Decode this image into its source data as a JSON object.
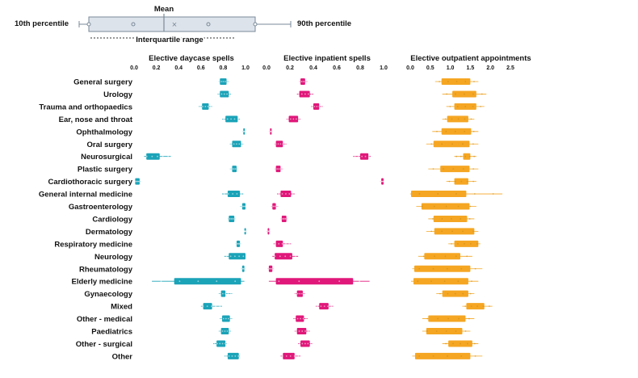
{
  "legend": {
    "mean_label": "Mean",
    "p10_label": "10th percentile",
    "p90_label": "90th percentile",
    "iqr_label": "Interquartile range"
  },
  "chart_data": [
    {
      "type": "boxplot",
      "title": "Elective daycase spells",
      "xlim": [
        0,
        1
      ],
      "ticks": [
        "0.0",
        "0.2",
        "0.4",
        "0.6",
        "0.8",
        "1.0"
      ],
      "color": "#1ba3b8",
      "categories": [
        "General surgery",
        "Urology",
        "Trauma and orthopaedics",
        "Ear, nose and throat",
        "Ophthalmology",
        "Oral surgery",
        "Neurosurgical",
        "Plastic surgery",
        "Cardiothoracic surgery",
        "General internal medicine",
        "Gastroenterology",
        "Cardiology",
        "Dermatology",
        "Respiratory medicine",
        "Neurology",
        "Rheumatology",
        "Elderly medicine",
        "Gynaecology",
        "Mixed",
        "Other - medical",
        "Paediatrics",
        "Other - surgical",
        "Other"
      ],
      "q1": [
        0.77,
        0.77,
        0.61,
        0.82,
        0.98,
        0.88,
        0.11,
        0.88,
        0.01,
        0.84,
        0.97,
        0.85,
        0.99,
        0.92,
        0.85,
        0.97,
        0.36,
        0.78,
        0.62,
        0.79,
        0.78,
        0.74,
        0.84
      ],
      "q3": [
        0.83,
        0.85,
        0.67,
        0.93,
        0.99,
        0.96,
        0.23,
        0.92,
        0.05,
        0.95,
        1.0,
        0.9,
        1.0,
        0.95,
        1.0,
        0.99,
        0.96,
        0.82,
        0.7,
        0.86,
        0.85,
        0.82,
        0.94
      ],
      "p10": [
        0.76,
        0.75,
        0.58,
        0.79,
        0.97,
        0.86,
        0.09,
        0.86,
        0.01,
        0.79,
        0.95,
        0.84,
        0.99,
        0.91,
        0.81,
        0.96,
        0.16,
        0.76,
        0.6,
        0.77,
        0.76,
        0.71,
        0.81
      ],
      "p90": [
        0.85,
        0.87,
        0.7,
        0.95,
        1.0,
        0.98,
        0.33,
        0.93,
        0.06,
        0.98,
        1.0,
        0.91,
        1.0,
        0.96,
        1.0,
        1.0,
        0.99,
        0.88,
        0.79,
        0.88,
        0.87,
        0.83,
        0.95
      ]
    },
    {
      "type": "boxplot",
      "title": "Elective inpatient spells",
      "xlim": [
        0,
        1
      ],
      "ticks": [
        "0.0",
        "0.2",
        "0.4",
        "0.6",
        "0.8",
        "1.0"
      ],
      "color": "#e0187a",
      "categories": [
        "General surgery",
        "Urology",
        "Trauma and orthopaedics",
        "Ear, nose and throat",
        "Ophthalmology",
        "Oral surgery",
        "Neurosurgical",
        "Plastic surgery",
        "Cardiothoracic surgery",
        "General internal medicine",
        "Gastroenterology",
        "Cardiology",
        "Dermatology",
        "Respiratory medicine",
        "Neurology",
        "Rheumatology",
        "Elderly medicine",
        "Gynaecology",
        "Mixed",
        "Other - medical",
        "Paediatrics",
        "Other - surgical",
        "Other"
      ],
      "q1": [
        0.29,
        0.28,
        0.4,
        0.19,
        0.03,
        0.08,
        0.8,
        0.08,
        0.98,
        0.12,
        0.05,
        0.13,
        0.01,
        0.08,
        0.07,
        0.02,
        0.08,
        0.26,
        0.45,
        0.25,
        0.26,
        0.29,
        0.14
      ],
      "q3": [
        0.33,
        0.37,
        0.45,
        0.27,
        0.04,
        0.14,
        0.87,
        0.12,
        1.0,
        0.21,
        0.08,
        0.17,
        0.02,
        0.14,
        0.22,
        0.05,
        0.74,
        0.31,
        0.53,
        0.32,
        0.34,
        0.37,
        0.24
      ],
      "p10": [
        0.28,
        0.26,
        0.38,
        0.17,
        0.02,
        0.07,
        0.74,
        0.07,
        0.97,
        0.09,
        0.04,
        0.12,
        0.0,
        0.06,
        0.05,
        0.01,
        0.02,
        0.24,
        0.42,
        0.23,
        0.24,
        0.27,
        0.12
      ],
      "p90": [
        0.35,
        0.4,
        0.48,
        0.29,
        0.05,
        0.17,
        0.89,
        0.14,
        1.0,
        0.24,
        0.1,
        0.18,
        0.03,
        0.21,
        0.27,
        0.06,
        0.88,
        0.33,
        0.57,
        0.35,
        0.37,
        0.39,
        0.29
      ]
    },
    {
      "type": "boxplot",
      "title": "Elective outpatient appointments",
      "xlim": [
        0,
        2.5
      ],
      "ticks": [
        "0.0",
        "0.5",
        "1.0",
        "1.5",
        "2.0",
        "2.5"
      ],
      "color": "#f5a623",
      "categories": [
        "General surgery",
        "Urology",
        "Trauma and orthopaedics",
        "Ear, nose and throat",
        "Ophthalmology",
        "Oral surgery",
        "Neurosurgical",
        "Plastic surgery",
        "Cardiothoracic surgery",
        "General internal medicine",
        "Gastroenterology",
        "Cardiology",
        "Dermatology",
        "Respiratory medicine",
        "Neurology",
        "Rheumatology",
        "Elderly medicine",
        "Gynaecology",
        "Mixed",
        "Other - medical",
        "Paediatrics",
        "Other - surgical",
        "Other"
      ],
      "q1": [
        0.78,
        1.05,
        1.1,
        0.92,
        0.78,
        0.58,
        1.32,
        0.75,
        1.1,
        0.02,
        0.28,
        0.58,
        0.6,
        1.1,
        0.35,
        0.1,
        0.08,
        0.8,
        1.4,
        0.45,
        0.4,
        0.95,
        0.12
      ],
      "q3": [
        1.5,
        1.65,
        1.65,
        1.45,
        1.52,
        1.48,
        1.5,
        1.48,
        1.45,
        1.4,
        1.48,
        1.42,
        1.6,
        1.7,
        1.25,
        1.5,
        1.45,
        1.45,
        1.85,
        1.38,
        1.3,
        1.55,
        1.5
      ],
      "p10": [
        0.62,
        0.8,
        0.9,
        0.8,
        0.55,
        0.4,
        1.1,
        0.45,
        0.9,
        0.0,
        0.15,
        0.45,
        0.4,
        0.95,
        0.2,
        0.05,
        0.02,
        0.65,
        1.3,
        0.3,
        0.3,
        0.8,
        0.05
      ],
      "p90": [
        1.7,
        1.9,
        1.85,
        1.6,
        1.7,
        1.7,
        1.65,
        1.7,
        1.65,
        2.3,
        1.65,
        1.6,
        1.7,
        1.75,
        1.55,
        1.8,
        1.7,
        1.6,
        2.05,
        1.6,
        1.5,
        1.7,
        1.8
      ]
    }
  ]
}
